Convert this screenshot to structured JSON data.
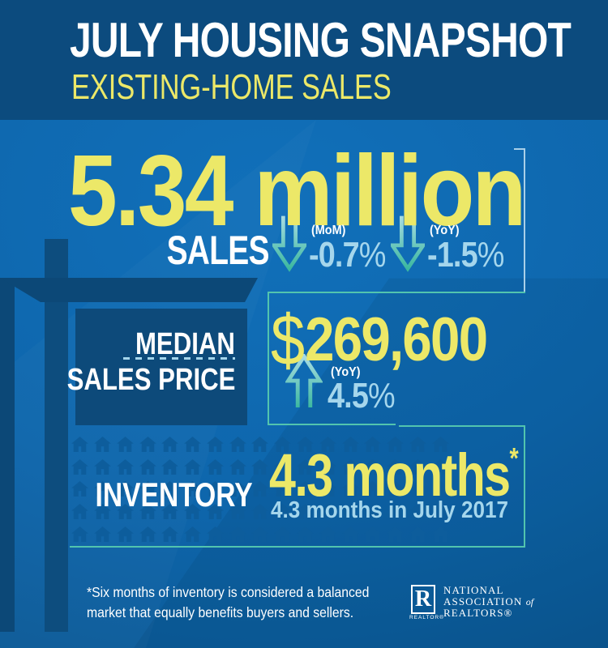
{
  "colors": {
    "background_blue": "#0f66ad",
    "header_navy": "#0c4b7e",
    "panel_navy": "#0d4a7a",
    "post_navy": "#0d4d7e",
    "crossbar_navy": "#0c4877",
    "accent_yellow": "#ece868",
    "light_blue": "#a5d6ec",
    "teal": "#52c4ae",
    "bracket_blue": "#a9cfe8",
    "house_blue": "#0d5d9c",
    "white": "#ffffff"
  },
  "header": {
    "title": "JULY HOUSING SNAPSHOT",
    "subtitle": "EXISTING-HOME SALES"
  },
  "sales": {
    "value": "5.34",
    "unit": "million",
    "label": "SALES",
    "mom": {
      "period": "(MoM)",
      "value": "-0.7",
      "pct": "%"
    },
    "yoy": {
      "period": "(YoY)",
      "value": "-1.5",
      "pct": "%"
    }
  },
  "median": {
    "label_line1": "MEDIAN",
    "label_line2": "SALES PRICE",
    "currency": "$",
    "value": "269,600",
    "yoy": {
      "period": "(YoY)",
      "value": "4.5",
      "pct": "%"
    }
  },
  "inventory": {
    "label": "INVENTORY",
    "value": "4.3 months",
    "asterisk": "*",
    "comparison": "4.3 months in July 2017",
    "grid": {
      "rows": 5,
      "cols": 17
    }
  },
  "footnote": {
    "line1": "*Six months of inventory is considered a balanced",
    "line2": "market that equally benefits buyers and sellers."
  },
  "logo": {
    "r_letter": "R",
    "realtor_label": "REALTOR®",
    "line1": "NATIONAL",
    "line2": "ASSOCIATION",
    "line2_suffix": "of",
    "line3": "REALTORS®"
  },
  "chart_data": {
    "type": "table",
    "title": "JULY HOUSING SNAPSHOT — EXISTING-HOME SALES",
    "metrics": [
      {
        "label": "SALES",
        "value": "5.34 million",
        "mom_change_pct": -0.7,
        "yoy_change_pct": -1.5
      },
      {
        "label": "MEDIAN SALES PRICE",
        "value": "$269,600",
        "yoy_change_pct": 4.5
      },
      {
        "label": "INVENTORY",
        "value": "4.3 months",
        "prior_year": "4.3 months in July 2017"
      }
    ],
    "footnote": "*Six months of inventory is considered a balanced market that equally benefits buyers and sellers.",
    "source": "NATIONAL ASSOCIATION of REALTORS®"
  }
}
